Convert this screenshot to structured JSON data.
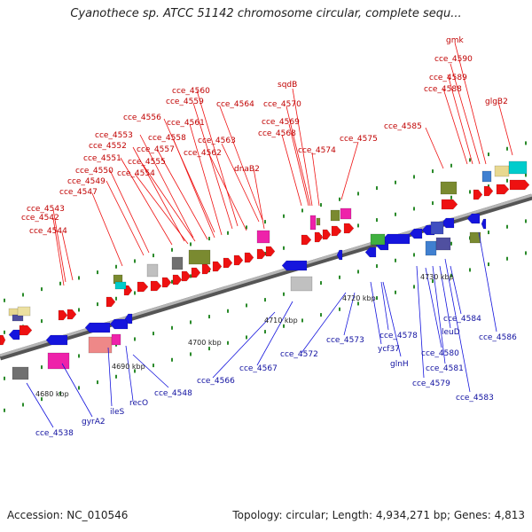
{
  "title": "Cyanothece sp. ATCC 51142 chromosome circular, complete sequ...",
  "footer": {
    "accession": "Accession: NC_010546",
    "summary": "Topology: circular; Length: 4,934,271 bp; Genes: 4,813"
  },
  "colors": {
    "forward": "#ee1111",
    "reverse": "#1515dd",
    "backbone": "#8a8a8a",
    "forward_label": "#c00000",
    "reverse_label": "#1010a0",
    "tick": "#2a8a2a"
  },
  "scale_labels": [
    "4680 kbp",
    "4690 kbp",
    "4700 kbp",
    "4710 kbp",
    "4720 kbp",
    "4730 kbp"
  ],
  "forward_labels": [
    "gmk",
    "cce_4590",
    "cce_4589",
    "cce_4588",
    "glgB2",
    "sqdB",
    "cce_4570",
    "cce_4569",
    "cce_4568",
    "cce_4574",
    "cce_4575",
    "cce_4585",
    "cce_4560",
    "cce_4559",
    "cce_4564",
    "cce_4556",
    "cce_4561",
    "cce_4553",
    "cce_4558",
    "cce_4563",
    "cce_4552",
    "cce_4557",
    "cce_4562",
    "cce_4551",
    "cce_4555",
    "dnaB2",
    "cce_4550",
    "cce_4554",
    "cce_4549",
    "cce_4547",
    "cce_4543",
    "cce_4542",
    "cce_4544"
  ],
  "reverse_labels": [
    "cce_4538",
    "gyrA2",
    "ileS",
    "recO",
    "cce_4548",
    "cce_4566",
    "cce_4567",
    "cce_4572",
    "cce_4573",
    "cce_4578",
    "ycf37",
    "glnH",
    "cce_4579",
    "cce_4580",
    "cce_4581",
    "leuD",
    "cce_4584",
    "cce_4583",
    "cce_4586"
  ]
}
